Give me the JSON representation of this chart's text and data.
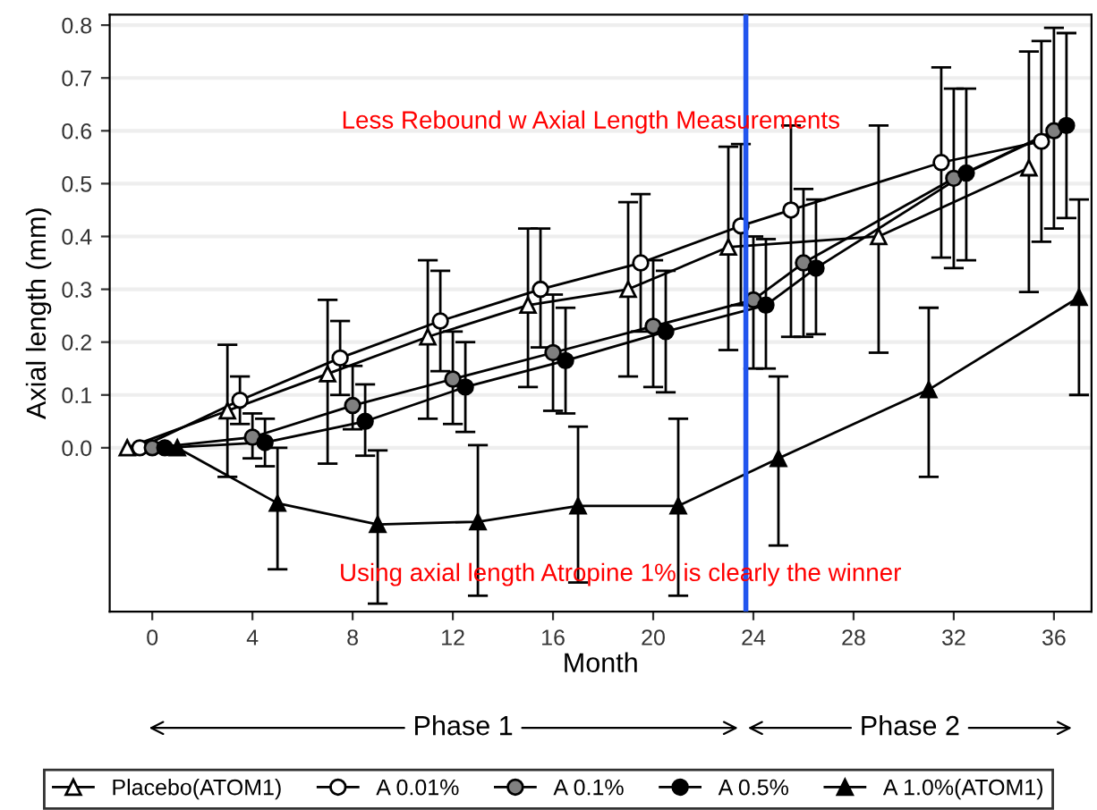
{
  "chart_data": {
    "type": "line",
    "xlabel": "Month",
    "ylabel": "Axial length (mm)",
    "xlim": [
      -1.7,
      37.5
    ],
    "ylim": [
      -0.31,
      0.82
    ],
    "xticks": [
      0,
      4,
      8,
      12,
      16,
      20,
      24,
      28,
      32,
      36
    ],
    "yticks": [
      {
        "value": 0,
        "label": "0.0"
      },
      {
        "value": 0.1,
        "label": "0.1"
      },
      {
        "value": 0.2,
        "label": "0.2"
      },
      {
        "value": 0.3,
        "label": "0.3"
      },
      {
        "value": 0.4,
        "label": "0.4"
      },
      {
        "value": 0.5,
        "label": "0.5"
      },
      {
        "value": 0.6,
        "label": "0.6"
      },
      {
        "value": 0.7,
        "label": "0.7"
      },
      {
        "value": 0.8,
        "label": "0.8"
      }
    ],
    "grid": "y",
    "legend": "bottom",
    "line_style": "solid",
    "series": [
      {
        "name": "Placebo(ATOM1)",
        "color": "#ffffff",
        "marker": "triangle",
        "x": [
          -1,
          3,
          7,
          11,
          15,
          19,
          23,
          29,
          35
        ],
        "values": [
          0,
          0.07,
          0.14,
          0.21,
          0.27,
          0.3,
          0.38,
          0.4,
          0.53
        ],
        "errors": [
          null,
          [
            -0.055,
            0.195
          ],
          [
            -0.03,
            0.28
          ],
          [
            0.055,
            0.355
          ],
          [
            0.115,
            0.415
          ],
          [
            0.135,
            0.465
          ],
          [
            0.185,
            0.57
          ],
          [
            0.18,
            0.61
          ],
          [
            0.295,
            0.75
          ]
        ]
      },
      {
        "name": "A 0.01%",
        "color": "#ffffff",
        "marker": "circle",
        "x": [
          -0.5,
          3.5,
          7.5,
          11.5,
          15.5,
          19.5,
          23.5,
          25.5,
          31.5,
          35.5
        ],
        "values": [
          0,
          0.09,
          0.17,
          0.24,
          0.3,
          0.35,
          0.42,
          0.45,
          0.54,
          0.58
        ],
        "errors": [
          null,
          [
            0.045,
            0.135
          ],
          [
            0.1,
            0.24
          ],
          [
            0.145,
            0.335
          ],
          [
            0.19,
            0.415
          ],
          [
            0.22,
            0.48
          ],
          [
            0.27,
            0.575
          ],
          [
            0.21,
            0.61
          ],
          [
            0.36,
            0.72
          ],
          [
            0.39,
            0.77
          ]
        ]
      },
      {
        "name": "A 0.1%",
        "color": "#808080",
        "marker": "circle",
        "x": [
          0,
          4,
          8,
          12,
          16,
          20,
          24,
          26,
          32,
          36
        ],
        "values": [
          0,
          0.02,
          0.08,
          0.13,
          0.18,
          0.23,
          0.28,
          0.35,
          0.51,
          0.6
        ],
        "errors": [
          null,
          [
            -0.02,
            0.065
          ],
          [
            0.035,
            0.155
          ],
          [
            0.045,
            0.22
          ],
          [
            0.07,
            0.29
          ],
          [
            0.115,
            0.355
          ],
          [
            0.15,
            0.4
          ],
          [
            0.21,
            0.49
          ],
          [
            0.34,
            0.68
          ],
          [
            0.415,
            0.795
          ]
        ]
      },
      {
        "name": "A 0.5%",
        "color": "#000000",
        "marker": "circle",
        "x": [
          0.5,
          4.5,
          8.5,
          12.5,
          16.5,
          20.5,
          24.5,
          26.5,
          32.5,
          36.5
        ],
        "values": [
          0,
          0.01,
          0.05,
          0.115,
          0.165,
          0.22,
          0.27,
          0.34,
          0.52,
          0.61
        ],
        "errors": [
          null,
          [
            -0.035,
            0.055
          ],
          [
            -0.015,
            0.12
          ],
          [
            0.03,
            0.2
          ],
          [
            0.065,
            0.265
          ],
          [
            0.105,
            0.335
          ],
          [
            0.15,
            0.395
          ],
          [
            0.215,
            0.47
          ],
          [
            0.355,
            0.68
          ],
          [
            0.435,
            0.785
          ]
        ]
      },
      {
        "name": "A 1.0%(ATOM1)",
        "color": "#000000",
        "marker": "triangle",
        "x": [
          1,
          5,
          9,
          13,
          17,
          21,
          25,
          31,
          37
        ],
        "values": [
          0,
          -0.105,
          -0.145,
          -0.14,
          -0.11,
          -0.11,
          -0.02,
          0.11,
          0.285
        ],
        "errors": [
          null,
          [
            -0.23,
            0.0
          ],
          [
            -0.295,
            -0.005
          ],
          [
            -0.28,
            0.005
          ],
          [
            -0.255,
            0.04
          ],
          [
            -0.28,
            0.055
          ],
          [
            -0.185,
            0.135
          ],
          [
            -0.055,
            0.265
          ],
          [
            0.1,
            0.47
          ]
        ]
      }
    ],
    "ref_lines": [
      {
        "axis": "x",
        "value": 23.7,
        "color": "#2255ee"
      }
    ],
    "annotations": [
      "Less Rebound w Axial Length Measurements",
      "Using axial length Atropine 1% is clearly the winner",
      "Phase 1",
      "Phase 2"
    ]
  }
}
